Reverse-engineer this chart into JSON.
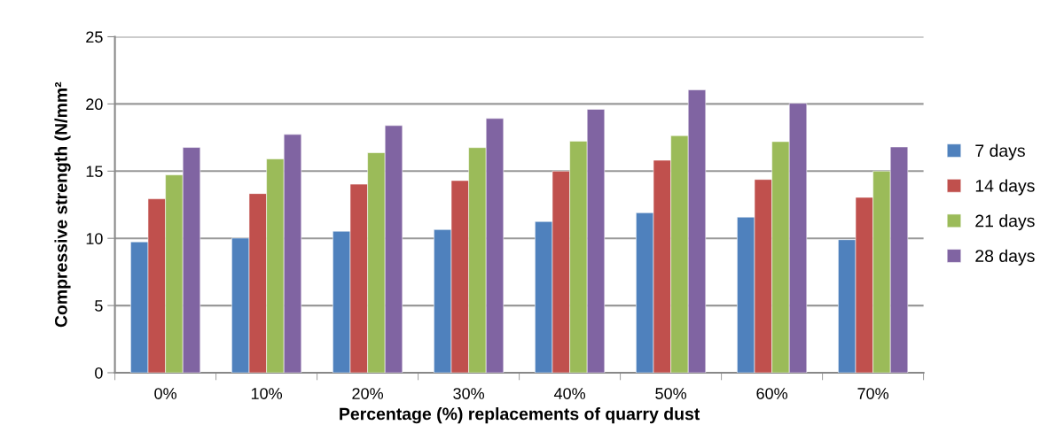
{
  "chart_data": {
    "type": "bar",
    "xlabel": "Percentage (%) replacements of quarry dust",
    "ylabel": "Compressive strength (N/mm²",
    "categories": [
      "0%",
      "10%",
      "20%",
      "30%",
      "40%",
      "50%",
      "60%",
      "70%"
    ],
    "series": [
      {
        "name": "7 days",
        "color": "#4f81bd",
        "values": [
          9.74,
          10.02,
          10.53,
          10.65,
          11.25,
          11.9,
          11.58,
          9.9
        ]
      },
      {
        "name": "14 days",
        "color": "#c0504d",
        "values": [
          12.94,
          13.33,
          14.03,
          14.3,
          15.0,
          15.81,
          14.38,
          13.05
        ]
      },
      {
        "name": "21 days",
        "color": "#9bbb59",
        "values": [
          14.72,
          15.91,
          16.37,
          16.75,
          17.23,
          17.64,
          17.2,
          15.0
        ]
      },
      {
        "name": "28 days",
        "color": "#8064a2",
        "values": [
          16.76,
          17.73,
          18.39,
          18.92,
          19.6,
          21.05,
          20.05,
          16.8
        ]
      }
    ],
    "ylim": [
      0,
      25
    ],
    "yticks": [
      0,
      5,
      10,
      15,
      20,
      25
    ],
    "grid": "y",
    "legend": "right"
  }
}
